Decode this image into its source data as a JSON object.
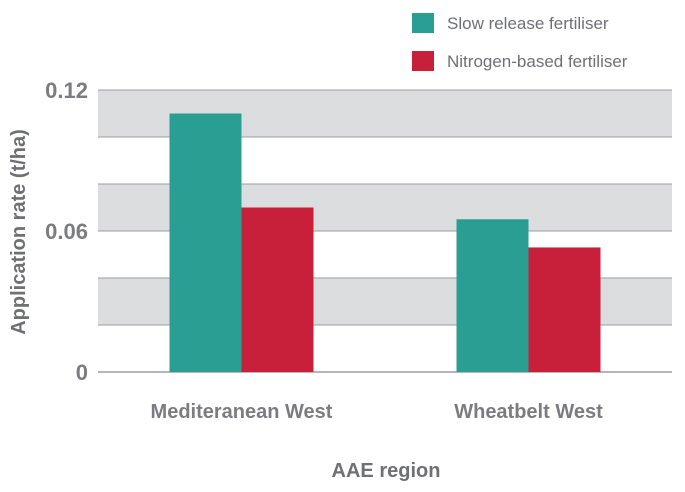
{
  "chart_data": {
    "type": "bar",
    "title": "",
    "xlabel": "AAE region",
    "ylabel": "Application rate (t/ha)",
    "ylim": [
      0,
      0.12
    ],
    "y_tick_labels": [
      "0",
      "0.06",
      "0.12"
    ],
    "grid": true,
    "legend_position": "top-right",
    "categories": [
      "Mediteranean West",
      "Wheatbelt West"
    ],
    "series": [
      {
        "name": "Slow release fertiliser",
        "color": "#2b9e93",
        "values": [
          0.11,
          0.065
        ]
      },
      {
        "name": "Nitrogen-based fertiliser",
        "color": "#c8203a",
        "values": [
          0.07,
          0.053
        ]
      }
    ],
    "band_color": "#dcdddf",
    "gridline_color": "#9b9da0"
  }
}
